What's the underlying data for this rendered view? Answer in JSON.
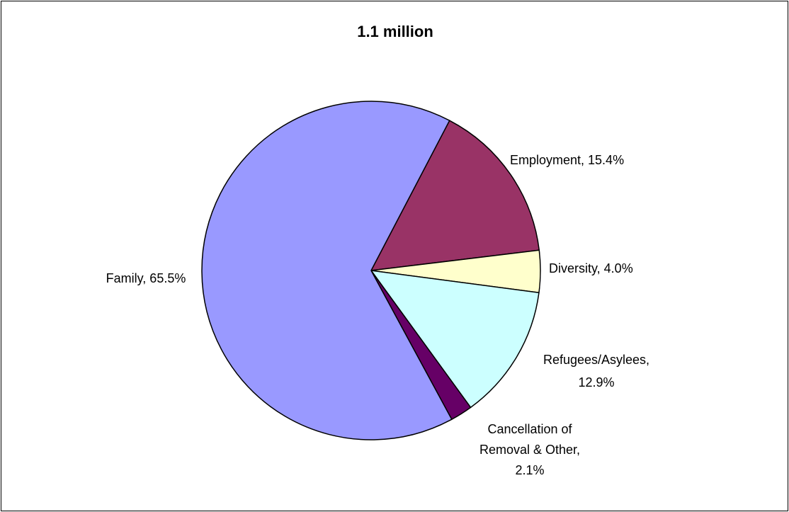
{
  "chart_data": {
    "type": "pie",
    "title": "1.1 million",
    "slices": [
      {
        "label": "Employment",
        "value": 15.4,
        "display": "15.4%",
        "color": "#993366"
      },
      {
        "label": "Diversity",
        "value": 4.0,
        "display": "4.0%",
        "color": "#FFFFCC"
      },
      {
        "label": "Refugees/Asylees",
        "value": 12.9,
        "display": "12.9%",
        "color": "#CCFFFF"
      },
      {
        "label": "Cancellation of Removal & Other",
        "value": 2.1,
        "display": "2.1%",
        "color": "#660066"
      },
      {
        "label": "Family",
        "value": 65.5,
        "display": "65.5%",
        "color": "#9999FF"
      }
    ],
    "legend": "none",
    "data_labels": "outside, category name and percentage"
  }
}
